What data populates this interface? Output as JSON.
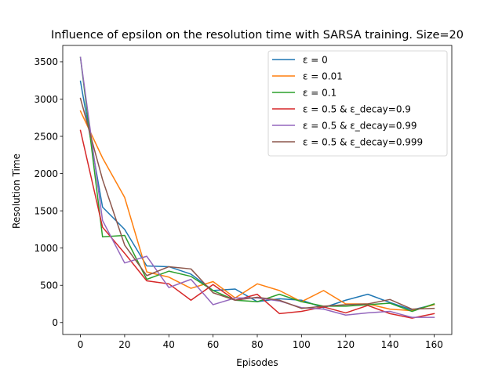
{
  "chart_data": {
    "type": "line",
    "title": "Influence of epsilon on the resolution time with SARSA training. Size=20",
    "xlabel": "Episodes",
    "ylabel": "Resolution Time",
    "xlim": [
      -8,
      168
    ],
    "ylim": [
      -160,
      3720
    ],
    "xticks": [
      0,
      20,
      40,
      60,
      80,
      100,
      120,
      140,
      160
    ],
    "yticks": [
      0,
      500,
      1000,
      1500,
      2000,
      2500,
      3000,
      3500
    ],
    "grid": false,
    "legend_position": "top-right",
    "x": [
      0,
      10,
      20,
      30,
      40,
      50,
      60,
      70,
      80,
      90,
      100,
      110,
      120,
      130,
      140,
      150,
      160
    ],
    "series": [
      {
        "name": "ε = 0",
        "color": "#1f77b4",
        "values": [
          3240,
          1550,
          1250,
          760,
          750,
          650,
          430,
          450,
          280,
          320,
          300,
          200,
          300,
          380,
          270,
          170,
          240
        ]
      },
      {
        "name": "ε = 0.01",
        "color": "#ff7f0e",
        "values": [
          2840,
          2210,
          1680,
          680,
          610,
          460,
          550,
          330,
          520,
          430,
          280,
          430,
          250,
          250,
          180,
          160,
          240
        ]
      },
      {
        "name": "ε = 0.1",
        "color": "#2ca02c",
        "values": [
          3560,
          1150,
          1170,
          580,
          690,
          620,
          430,
          300,
          280,
          380,
          280,
          220,
          220,
          240,
          260,
          150,
          250
        ]
      },
      {
        "name": "ε = 0.5 & ε_decay=0.9",
        "color": "#d62728",
        "values": [
          2580,
          1280,
          930,
          560,
          520,
          300,
          510,
          300,
          380,
          120,
          150,
          210,
          130,
          230,
          120,
          60,
          120
        ]
      },
      {
        "name": "ε = 0.5 & ε_decay=0.99",
        "color": "#9467bd",
        "values": [
          3560,
          1370,
          800,
          890,
          470,
          580,
          240,
          330,
          330,
          290,
          200,
          180,
          100,
          130,
          150,
          70,
          70
        ]
      },
      {
        "name": "ε = 0.5 & ε_decay=0.999",
        "color": "#8c564b",
        "values": [
          3010,
          1920,
          1040,
          630,
          750,
          720,
          400,
          300,
          340,
          300,
          190,
          220,
          240,
          250,
          310,
          180,
          190
        ]
      }
    ]
  }
}
